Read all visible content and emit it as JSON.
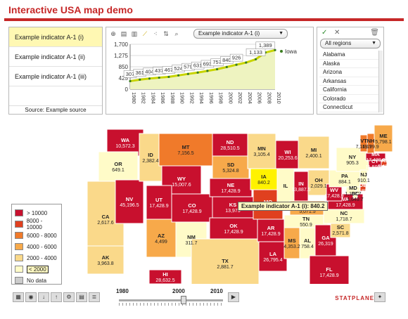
{
  "app_title": "Interactive USA map demo",
  "indicators": {
    "items": [
      "Example indicator A-1 (i)",
      "Example indicator A-1 (ii)",
      "Example indicator A-1 (iii)"
    ],
    "selected": 0,
    "source": "Source: Example source"
  },
  "chart_toolbar": {
    "icons": [
      "zoom-icon",
      "bar-chart-icon",
      "column-chart-icon",
      "line-chart-icon",
      "scatter-chart-icon",
      "sort-icon",
      "magnifier-icon"
    ],
    "indicator_select": "Example indicator A-1 (i)"
  },
  "chart_data": {
    "type": "line",
    "x": [
      "1980",
      "1982",
      "1984",
      "1986",
      "1988",
      "1990",
      "1992",
      "1994",
      "1996",
      "1998",
      "2000",
      "2002",
      "2004",
      "2006",
      "2008",
      "2010"
    ],
    "series": [
      {
        "name": "Iowa",
        "values": [
          307,
          361,
          404,
          437,
          467,
          524,
          579,
          631,
          693,
          757,
          840,
          926,
          1009,
          1133,
          1389,
          1480
        ]
      }
    ],
    "value_labels": [
      {
        "x": "1980",
        "text": "307"
      },
      {
        "x": "1982",
        "text": "361"
      },
      {
        "x": "1984",
        "text": "404"
      },
      {
        "x": "1986",
        "text": "437"
      },
      {
        "x": "1988",
        "text": "467"
      },
      {
        "x": "1990",
        "text": "524"
      },
      {
        "x": "1992",
        "text": "579"
      },
      {
        "x": "1994",
        "text": "631"
      },
      {
        "x": "1996",
        "text": "693"
      },
      {
        "x": "1998",
        "text": "757"
      },
      {
        "x": "2000",
        "text": "840"
      },
      {
        "x": "2002",
        "text": "926"
      },
      {
        "x": "2006",
        "text": "1,133"
      },
      {
        "x": "2008",
        "text": "1,389"
      }
    ],
    "yticks": [
      "1,700",
      "1,275",
      "850",
      "425",
      "0"
    ],
    "ylim": [
      0,
      1700
    ],
    "legend": "Iowa",
    "legend_position": "right",
    "line_color": "#c8d400",
    "marker_color": "#3a7d1f"
  },
  "regions": {
    "select": "All regions",
    "items": [
      "Alabama",
      "Alaska",
      "Arizona",
      "Arkansas",
      "California",
      "Colorado",
      "Connecticut"
    ]
  },
  "legend": {
    "items": [
      {
        "label": "> 10000",
        "color": "#c8102e"
      },
      {
        "label": "8000 - 10000",
        "color": "#e0401f"
      },
      {
        "label": "6000 - 8000",
        "color": "#f07a2a"
      },
      {
        "label": "4000 - 6000",
        "color": "#f7a94a"
      },
      {
        "label": "2000 - 4000",
        "color": "#fad98a"
      },
      {
        "label": "< 2000",
        "color": "#fffbc8"
      },
      {
        "label": "No data",
        "color": "#cccccc"
      }
    ]
  },
  "map_labels": [
    {
      "abbr": "WA",
      "value": "10,572.3"
    },
    {
      "abbr": "OR",
      "value": "649.1"
    },
    {
      "abbr": "CA",
      "value": "2,617.6"
    },
    {
      "abbr": "NV",
      "value": "45,196.5"
    },
    {
      "abbr": "ID",
      "value": "2,382.4"
    },
    {
      "abbr": "MT",
      "value": "7,156.5"
    },
    {
      "abbr": "WY",
      "value": "15,007.6"
    },
    {
      "abbr": "UT",
      "value": "17,428.9"
    },
    {
      "abbr": "AZ",
      "value": "4,499"
    },
    {
      "abbr": "CO",
      "value": "17,428.9"
    },
    {
      "abbr": "NM",
      "value": "311.7"
    },
    {
      "abbr": "ND",
      "value": "28,510.5"
    },
    {
      "abbr": "SD",
      "value": "5,324.8"
    },
    {
      "abbr": "NE",
      "value": "17,428.9"
    },
    {
      "abbr": "KS",
      "value": "13,975"
    },
    {
      "abbr": "OK",
      "value": "17,428.9"
    },
    {
      "abbr": "TX",
      "value": "2,881.7"
    },
    {
      "abbr": "MN",
      "value": "3,105.4"
    },
    {
      "abbr": "IA",
      "value": "840.2"
    },
    {
      "abbr": "MO",
      "value": "8,815.1"
    },
    {
      "abbr": "AR",
      "value": "17,428.9"
    },
    {
      "abbr": "LA",
      "value": "26,795.4"
    },
    {
      "abbr": "WI",
      "value": "20,253.6"
    },
    {
      "abbr": "IL",
      "value": ""
    },
    {
      "abbr": "MI",
      "value": "2,400.1"
    },
    {
      "abbr": "IN",
      "value": "13,887.5"
    },
    {
      "abbr": "OH",
      "value": "2,029.1"
    },
    {
      "abbr": "KY",
      "value": "5,071.5"
    },
    {
      "abbr": "TN",
      "value": "550.9"
    },
    {
      "abbr": "MS",
      "value": "4,353.2"
    },
    {
      "abbr": "AL",
      "value": "758.4"
    },
    {
      "abbr": "GA",
      "value": "26,319"
    },
    {
      "abbr": "FL",
      "value": "17,428.9"
    },
    {
      "abbr": "SC",
      "value": "2,571.8"
    },
    {
      "abbr": "NC",
      "value": "1,718.7"
    },
    {
      "abbr": "VA",
      "value": "17,428.9"
    },
    {
      "abbr": "WV",
      "value": "17,428.9"
    },
    {
      "abbr": "PA",
      "value": "884.1"
    },
    {
      "abbr": "NY",
      "value": "905.3"
    },
    {
      "abbr": "VT",
      "value": "7,119.7"
    },
    {
      "abbr": "NH",
      "value": "6,199.9"
    },
    {
      "abbr": "ME",
      "value": "5,798.1"
    },
    {
      "abbr": "MA",
      "value": "17,428.9"
    },
    {
      "abbr": "RI",
      "value": "9,479"
    },
    {
      "abbr": "CT",
      "value": "11,599.2"
    },
    {
      "abbr": "NJ",
      "value": "910.1"
    },
    {
      "abbr": "DE",
      "value": "9,188.7"
    },
    {
      "abbr": "MD",
      "value": "1,187.7"
    },
    {
      "abbr": "DC",
      "value": "1,649.7"
    },
    {
      "abbr": "AK",
      "value": "3,963.8"
    },
    {
      "abbr": "HI",
      "value": "28,632.5"
    }
  ],
  "tooltip": "Example indicator A-1 (i): 840.2",
  "timeline": {
    "start": "1980",
    "mid": "2000",
    "end": "2010"
  },
  "bottom_icons": [
    "map-view-icon",
    "eye-icon",
    "download-icon",
    "upload-icon",
    "settings-icon",
    "table-icon",
    "notes-icon",
    "play-icon"
  ],
  "brand": "STATPLANET"
}
